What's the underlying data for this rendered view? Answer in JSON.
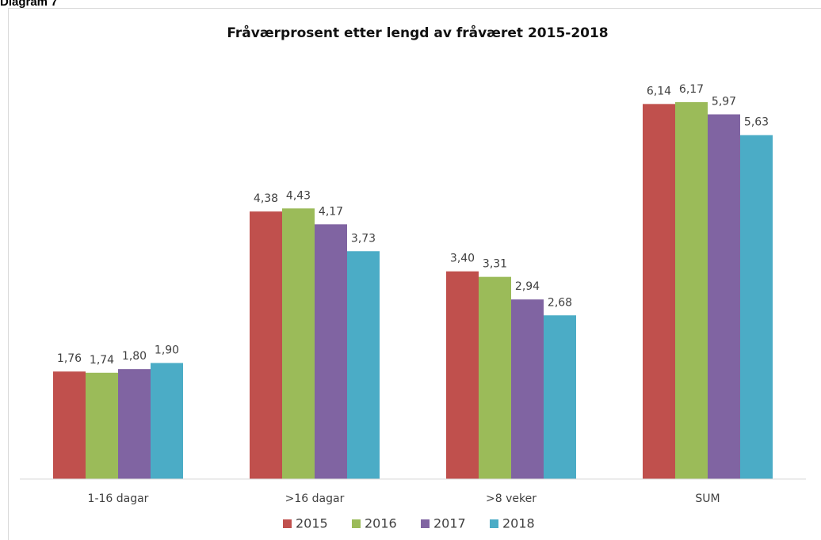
{
  "label": "Diagram 7",
  "chart_data": {
    "type": "bar",
    "title": "Fråværprosent etter lengd av fråværet 2015-2018",
    "categories": [
      "1-16 dagar",
      ">16 dagar",
      ">8 veker",
      "SUM"
    ],
    "series": [
      {
        "name": "2015",
        "color": "#c0504d",
        "values": [
          1.76,
          4.38,
          3.4,
          6.14
        ],
        "value_labels": [
          "1,76",
          "4,38",
          "3,40",
          "6,14"
        ]
      },
      {
        "name": "2016",
        "color": "#9bbb59",
        "values": [
          1.74,
          4.43,
          3.31,
          6.17
        ],
        "value_labels": [
          "1,74",
          "4,43",
          "3,31",
          "6,17"
        ]
      },
      {
        "name": "2017",
        "color": "#8064a2",
        "values": [
          1.8,
          4.17,
          2.94,
          5.97
        ],
        "value_labels": [
          "1,80",
          "4,17",
          "2,94",
          "5,97"
        ]
      },
      {
        "name": "2018",
        "color": "#4bacc6",
        "values": [
          1.9,
          3.73,
          2.68,
          5.63
        ],
        "value_labels": [
          "1,90",
          "3,73",
          "2,68",
          "5,63"
        ]
      }
    ],
    "ylim": [
      0,
      7
    ],
    "legend": "bottom"
  }
}
